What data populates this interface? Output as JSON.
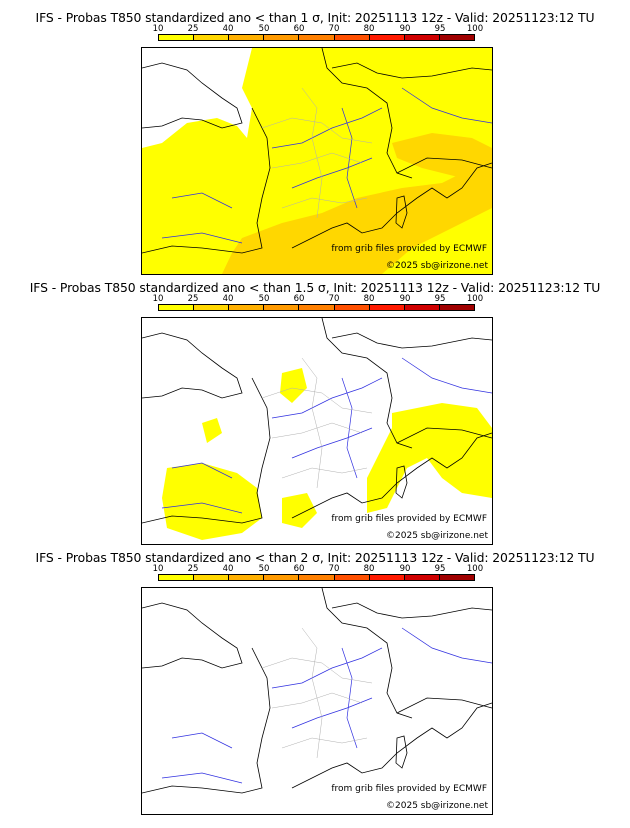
{
  "legend": {
    "ticks": [
      "10",
      "25",
      "40",
      "50",
      "60",
      "70",
      "80",
      "90",
      "95",
      "100"
    ],
    "colors": [
      "#ffff00",
      "#ffd700",
      "#ffb000",
      "#ff9a00",
      "#ff8000",
      "#ff5000",
      "#ff1a00",
      "#d00000",
      "#a00000",
      "#500000"
    ]
  },
  "panels": [
    {
      "title": "IFS - Probas T850  standardized ano < than 1 σ, Init: 20251113 12z - Valid: 20251123:12 TU",
      "source": "from grib files provided by ECMWF",
      "copyright": "©2025 sb@irizone.net"
    },
    {
      "title": "IFS - Probas T850  standardized ano < than 1.5 σ, Init: 20251113 12z - Valid: 20251123:12 TU",
      "source": "from grib files provided by ECMWF",
      "copyright": "©2025 sb@irizone.net"
    },
    {
      "title": "IFS - Probas T850  standardized ano < than 2 σ, Init: 20251113 12z - Valid: 20251123:12 TU",
      "source": "from grib files provided by ECMWF",
      "copyright": "©2025 sb@irizone.net"
    }
  ],
  "colors": {
    "land_outline": "#000000",
    "rivers": "#3030e0",
    "regions": "#b0b0b0"
  }
}
